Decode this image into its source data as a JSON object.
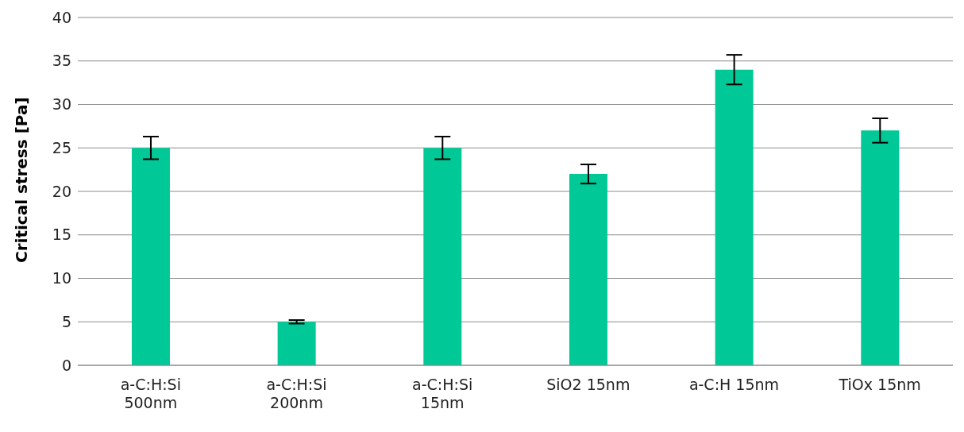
{
  "chart_data": {
    "type": "bar",
    "ylabel": "Critical stress [Pa]",
    "categories": [
      "a-C:H:Si 500nm",
      "a-C:H:Si 200nm",
      "a-C:H:Si 15nm",
      "SiO2 15nm",
      "a-C:H 15nm",
      "TiOx 15nm"
    ],
    "values": [
      25,
      5,
      25,
      22,
      34,
      27
    ],
    "errors": [
      1.3,
      0.2,
      1.3,
      1.1,
      1.7,
      1.4
    ],
    "color": "#00c896",
    "ylim": [
      0,
      40
    ],
    "yticks": [
      0,
      5,
      10,
      15,
      20,
      25,
      30,
      35,
      40
    ],
    "grid": "y",
    "legend": false
  }
}
